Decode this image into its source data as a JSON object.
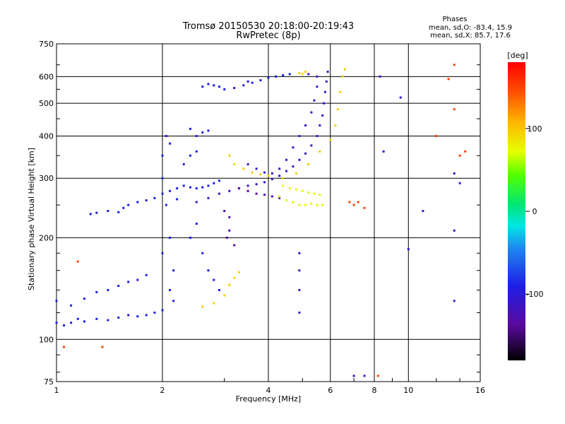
{
  "chart_data": {
    "type": "scatter",
    "title": "Tromsø 20150530 20:18:00-20:19:43",
    "subtitle": "RwPretec (8p)",
    "xlabel": "Frequency [MHz]",
    "ylabel": "Stationary phase Virtual Height [km]",
    "x_scale": "log",
    "y_scale": "log",
    "xlim": [
      1,
      16
    ],
    "ylim": [
      75,
      750
    ],
    "x_ticks": [
      1,
      2,
      4,
      6,
      8,
      10,
      16
    ],
    "y_ticks": [
      75,
      100,
      200,
      300,
      400,
      500,
      600,
      750
    ],
    "grid": true,
    "phase_stats": {
      "heading": "Phases",
      "line1": "mean, sd,O: -83.4, 15.9",
      "line2": "mean, sd,X: 85.7, 17.6"
    },
    "colorbar": {
      "label": "[deg]",
      "range": [
        -180,
        180
      ],
      "ticks": [
        100,
        0,
        -100
      ]
    },
    "series": [
      {
        "mode": "O",
        "phase": -90,
        "points": [
          [
            1.0,
            112
          ],
          [
            1.05,
            110
          ],
          [
            1.1,
            112
          ],
          [
            1.15,
            115
          ],
          [
            1.2,
            113
          ],
          [
            1.3,
            115
          ],
          [
            1.4,
            114
          ],
          [
            1.5,
            116
          ],
          [
            1.6,
            118
          ],
          [
            1.7,
            117
          ],
          [
            1.8,
            118
          ],
          [
            1.9,
            120
          ],
          [
            2.0,
            122
          ],
          [
            1.0,
            130
          ],
          [
            1.1,
            126
          ],
          [
            1.2,
            132
          ],
          [
            1.3,
            138
          ],
          [
            1.4,
            140
          ],
          [
            1.5,
            144
          ],
          [
            1.6,
            148
          ],
          [
            1.7,
            150
          ],
          [
            1.8,
            155
          ],
          [
            1.25,
            235
          ],
          [
            1.3,
            237
          ],
          [
            1.4,
            240
          ],
          [
            1.5,
            238
          ],
          [
            1.55,
            245
          ],
          [
            1.6,
            250
          ],
          [
            1.7,
            255
          ],
          [
            1.8,
            258
          ],
          [
            1.9,
            262
          ],
          [
            2.0,
            270
          ],
          [
            2.1,
            275
          ],
          [
            2.2,
            280
          ],
          [
            2.3,
            285
          ],
          [
            2.4,
            282
          ],
          [
            2.5,
            280
          ],
          [
            2.6,
            282
          ],
          [
            2.7,
            285
          ],
          [
            2.8,
            290
          ],
          [
            2.9,
            295
          ],
          [
            2.0,
            350
          ],
          [
            2.05,
            400
          ],
          [
            2.1,
            380
          ],
          [
            2.0,
            300
          ],
          [
            2.05,
            250
          ],
          [
            2.1,
            200
          ],
          [
            2.15,
            160
          ],
          [
            2.0,
            180
          ],
          [
            2.1,
            140
          ],
          [
            2.15,
            130
          ],
          [
            2.2,
            260
          ],
          [
            2.3,
            330
          ],
          [
            2.4,
            350
          ],
          [
            2.5,
            360
          ],
          [
            2.4,
            420
          ],
          [
            2.5,
            400
          ],
          [
            2.6,
            410
          ],
          [
            2.7,
            415
          ],
          [
            2.6,
            560
          ],
          [
            2.7,
            570
          ],
          [
            2.8,
            565
          ],
          [
            2.9,
            560
          ],
          [
            3.0,
            550
          ],
          [
            3.2,
            555
          ],
          [
            3.4,
            565
          ],
          [
            3.5,
            580
          ],
          [
            3.6,
            575
          ],
          [
            3.8,
            585
          ],
          [
            4.0,
            595
          ],
          [
            4.2,
            600
          ],
          [
            4.4,
            605
          ],
          [
            4.6,
            610
          ],
          [
            2.4,
            200
          ],
          [
            2.5,
            220
          ],
          [
            2.6,
            180
          ],
          [
            2.7,
            160
          ],
          [
            2.8,
            150
          ],
          [
            2.9,
            140
          ]
        ]
      },
      {
        "mode": "O",
        "phase": -110,
        "points": [
          [
            2.5,
            255
          ],
          [
            2.7,
            262
          ],
          [
            2.9,
            270
          ],
          [
            3.1,
            275
          ],
          [
            3.3,
            280
          ],
          [
            3.5,
            285
          ],
          [
            3.7,
            288
          ],
          [
            3.9,
            292
          ],
          [
            4.1,
            298
          ],
          [
            4.3,
            305
          ],
          [
            4.5,
            315
          ],
          [
            4.7,
            325
          ],
          [
            4.9,
            340
          ],
          [
            5.1,
            355
          ],
          [
            5.3,
            375
          ],
          [
            5.5,
            400
          ],
          [
            5.6,
            430
          ],
          [
            5.7,
            460
          ],
          [
            5.75,
            500
          ],
          [
            5.8,
            540
          ],
          [
            5.85,
            580
          ],
          [
            5.9,
            620
          ],
          [
            3.5,
            330
          ],
          [
            3.7,
            320
          ],
          [
            3.9,
            312
          ],
          [
            4.1,
            310
          ],
          [
            4.3,
            320
          ],
          [
            4.5,
            340
          ],
          [
            4.7,
            370
          ],
          [
            4.9,
            400
          ],
          [
            5.1,
            430
          ],
          [
            5.3,
            470
          ],
          [
            5.4,
            510
          ],
          [
            5.5,
            560
          ],
          [
            5.2,
            610
          ],
          [
            5.5,
            600
          ],
          [
            4.9,
            120
          ],
          [
            4.9,
            140
          ],
          [
            4.9,
            160
          ],
          [
            4.9,
            180
          ]
        ]
      },
      {
        "mode": "O",
        "phase": -135,
        "points": [
          [
            3.0,
            240
          ],
          [
            3.1,
            230
          ],
          [
            3.05,
            200
          ],
          [
            3.1,
            210
          ],
          [
            3.2,
            190
          ],
          [
            3.3,
            280
          ],
          [
            3.5,
            275
          ],
          [
            3.7,
            270
          ],
          [
            3.9,
            268
          ],
          [
            4.1,
            265
          ],
          [
            4.3,
            262
          ]
        ]
      },
      {
        "mode": "X",
        "phase": 95,
        "points": [
          [
            2.6,
            125
          ],
          [
            2.8,
            128
          ],
          [
            3.0,
            135
          ],
          [
            3.1,
            145
          ],
          [
            3.2,
            152
          ],
          [
            3.3,
            158
          ],
          [
            3.1,
            350
          ],
          [
            3.2,
            330
          ],
          [
            3.4,
            320
          ],
          [
            3.6,
            312
          ],
          [
            3.8,
            308
          ],
          [
            4.0,
            305
          ],
          [
            4.4,
            300
          ],
          [
            4.8,
            310
          ],
          [
            5.2,
            330
          ],
          [
            5.6,
            360
          ],
          [
            6.0,
            390
          ],
          [
            6.2,
            430
          ],
          [
            6.3,
            480
          ],
          [
            6.4,
            540
          ],
          [
            6.5,
            600
          ],
          [
            6.6,
            630
          ],
          [
            4.9,
            615
          ],
          [
            5.0,
            610
          ],
          [
            5.1,
            620
          ]
        ]
      },
      {
        "mode": "X",
        "phase": 75,
        "points": [
          [
            4.3,
            265
          ],
          [
            4.5,
            258
          ],
          [
            4.7,
            255
          ],
          [
            4.9,
            250
          ],
          [
            5.1,
            250
          ],
          [
            5.3,
            252
          ],
          [
            5.5,
            250
          ],
          [
            5.7,
            250
          ],
          [
            4.4,
            285
          ],
          [
            4.6,
            280
          ],
          [
            4.8,
            278
          ],
          [
            5.0,
            275
          ],
          [
            5.2,
            272
          ],
          [
            5.4,
            270
          ],
          [
            5.6,
            268
          ]
        ]
      },
      {
        "mode": "noise",
        "phase": 150,
        "points": [
          [
            1.15,
            170
          ],
          [
            1.35,
            95
          ],
          [
            1.05,
            95
          ],
          [
            6.8,
            255
          ],
          [
            7.0,
            250
          ],
          [
            7.2,
            255
          ],
          [
            7.5,
            245
          ],
          [
            8.2,
            78
          ],
          [
            13.5,
            650
          ],
          [
            13.0,
            590
          ],
          [
            12.0,
            400
          ],
          [
            13.5,
            480
          ],
          [
            14.0,
            350
          ],
          [
            14.5,
            360
          ]
        ]
      },
      {
        "mode": "noise",
        "phase": -100,
        "points": [
          [
            8.3,
            600
          ],
          [
            9.5,
            520
          ],
          [
            8.5,
            360
          ],
          [
            11.0,
            240
          ],
          [
            10.0,
            185
          ],
          [
            13.5,
            310
          ],
          [
            13.5,
            210
          ],
          [
            13.5,
            130
          ],
          [
            14.0,
            290
          ],
          [
            7.0,
            78
          ],
          [
            7.5,
            78
          ]
        ]
      }
    ]
  }
}
